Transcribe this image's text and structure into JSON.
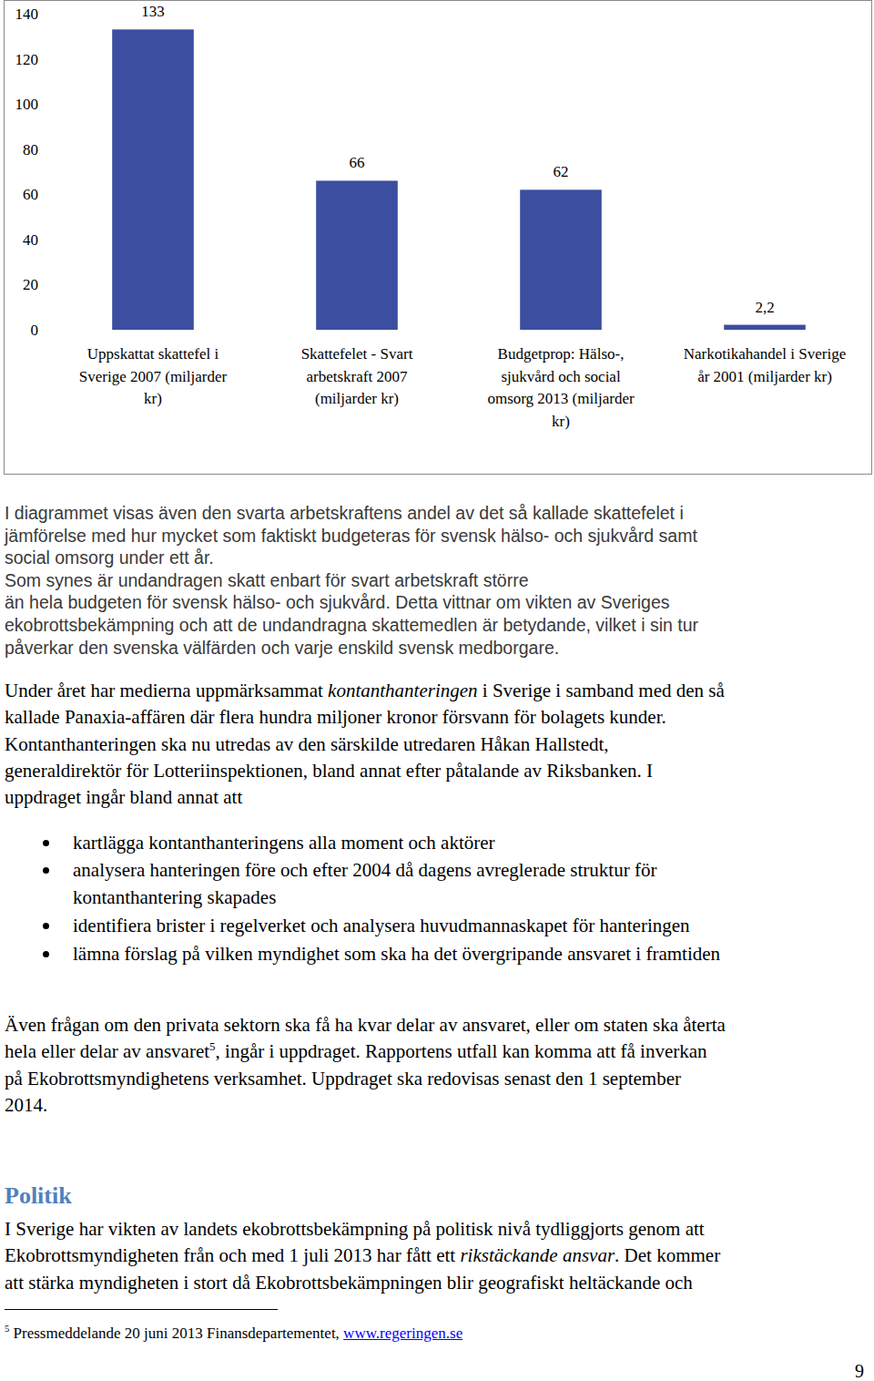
{
  "chart_data": {
    "type": "bar",
    "categories": [
      "Uppskattat skattefel i\nSverige 2007 (miljarder\nkr)",
      "Skattefelet - Svart\narbetskraft 2007\n(miljarder kr)",
      "Budgetprop: Hälso-,\nsjukvård och social\nomsorg 2013 (miljarder\nkr)",
      "Narkotikahandel i Sverige\når 2001 (miljarder kr)"
    ],
    "values": [
      133,
      66,
      62,
      2.2
    ],
    "value_labels": [
      "133",
      "66",
      "62",
      "2,2"
    ],
    "color": "#3b4ea0",
    "ylim": [
      0,
      140
    ],
    "yticks": [
      0,
      20,
      40,
      60,
      80,
      100,
      120,
      140
    ],
    "grid": false,
    "data_labels": true
  },
  "document": {
    "chart_caption": [
      [
        "I diagrammet visas även den svarta arbetskraftens andel av det så kallade skattefelet i"
      ],
      [
        "jämförelse med hur mycket som faktiskt budgeteras för svensk hälso- och sjukvård samt"
      ],
      [
        "social omsorg under ett år."
      ],
      [
        "Som synes är undandragen skatt enbart för svart arbetskraft större"
      ],
      [
        "än hela budgeten för svensk hälso- och sjukvård. Detta vittnar om vikten av Sveriges"
      ],
      [
        "ekobrottsbekämpning och att de undandragna skattemedlen är betydande, vilket i sin tur"
      ],
      [
        "påverkar den svenska välfärden och varje enskild svensk medborgare."
      ]
    ],
    "paragraph_1": [
      [
        "Under året har medierna uppmärksammat ",
        {
          "em": "kontanthanteringen"
        },
        " i Sverige i samband med den så"
      ],
      [
        "kallade Panaxia-affären där flera hundra miljoner kronor försvann för bolagets kunder."
      ],
      [
        "Kontanthanteringen ska nu utredas av den särskilde utredaren Håkan Hallstedt,"
      ],
      [
        "generaldirektör för Lotteriinspektionen, bland annat efter påtalande av Riksbanken. I"
      ],
      [
        "uppdraget ingår bland annat att"
      ]
    ],
    "bullets": [
      [
        [
          "kartlägga kontanthanteringens alla moment och aktörer"
        ]
      ],
      [
        [
          "analysera hanteringen före och efter 2004 då dagens avreglerade struktur för"
        ],
        [
          "kontanthantering skapades"
        ]
      ],
      [
        [
          "identifiera brister i regelverket och analysera huvudmannaskapet för hanteringen"
        ]
      ],
      [
        [
          "lämna förslag på vilken myndighet som ska ha det övergripande ansvaret i framtiden"
        ]
      ]
    ],
    "paragraph_2": [
      [
        "Även frågan om den privata sektorn ska få ha kvar delar av ansvaret, eller om staten ska återta"
      ],
      [
        "hela eller delar av ansvaret",
        {
          "sup": "5"
        },
        ", ingår i uppdraget. Rapportens utfall kan komma att få inverkan"
      ],
      [
        "på Ekobrottsmyndighetens verksamhet. Uppdraget ska redovisas senast den 1 september"
      ],
      [
        "2014."
      ]
    ],
    "heading": "Politik",
    "paragraph_3": [
      [
        "I Sverige har vikten av landets ekobrottsbekämpning på politisk nivå tydliggjorts genom att"
      ],
      [
        "Ekobrottsmyndigheten från och med 1 juli 2013 har fått ett ",
        {
          "em": "rikstäckande ansvar"
        },
        ". Det kommer"
      ],
      [
        "att stärka myndigheten i stort då Ekobrottsbekämpningen blir geografiskt heltäckande och"
      ]
    ],
    "footnote": [
      [
        {
          "sup": "5"
        },
        " Pressmeddelande 20 juni 2013 Finansdepartementet, ",
        {
          "link": "www.regeringen.se"
        }
      ]
    ],
    "page_number": 9
  }
}
